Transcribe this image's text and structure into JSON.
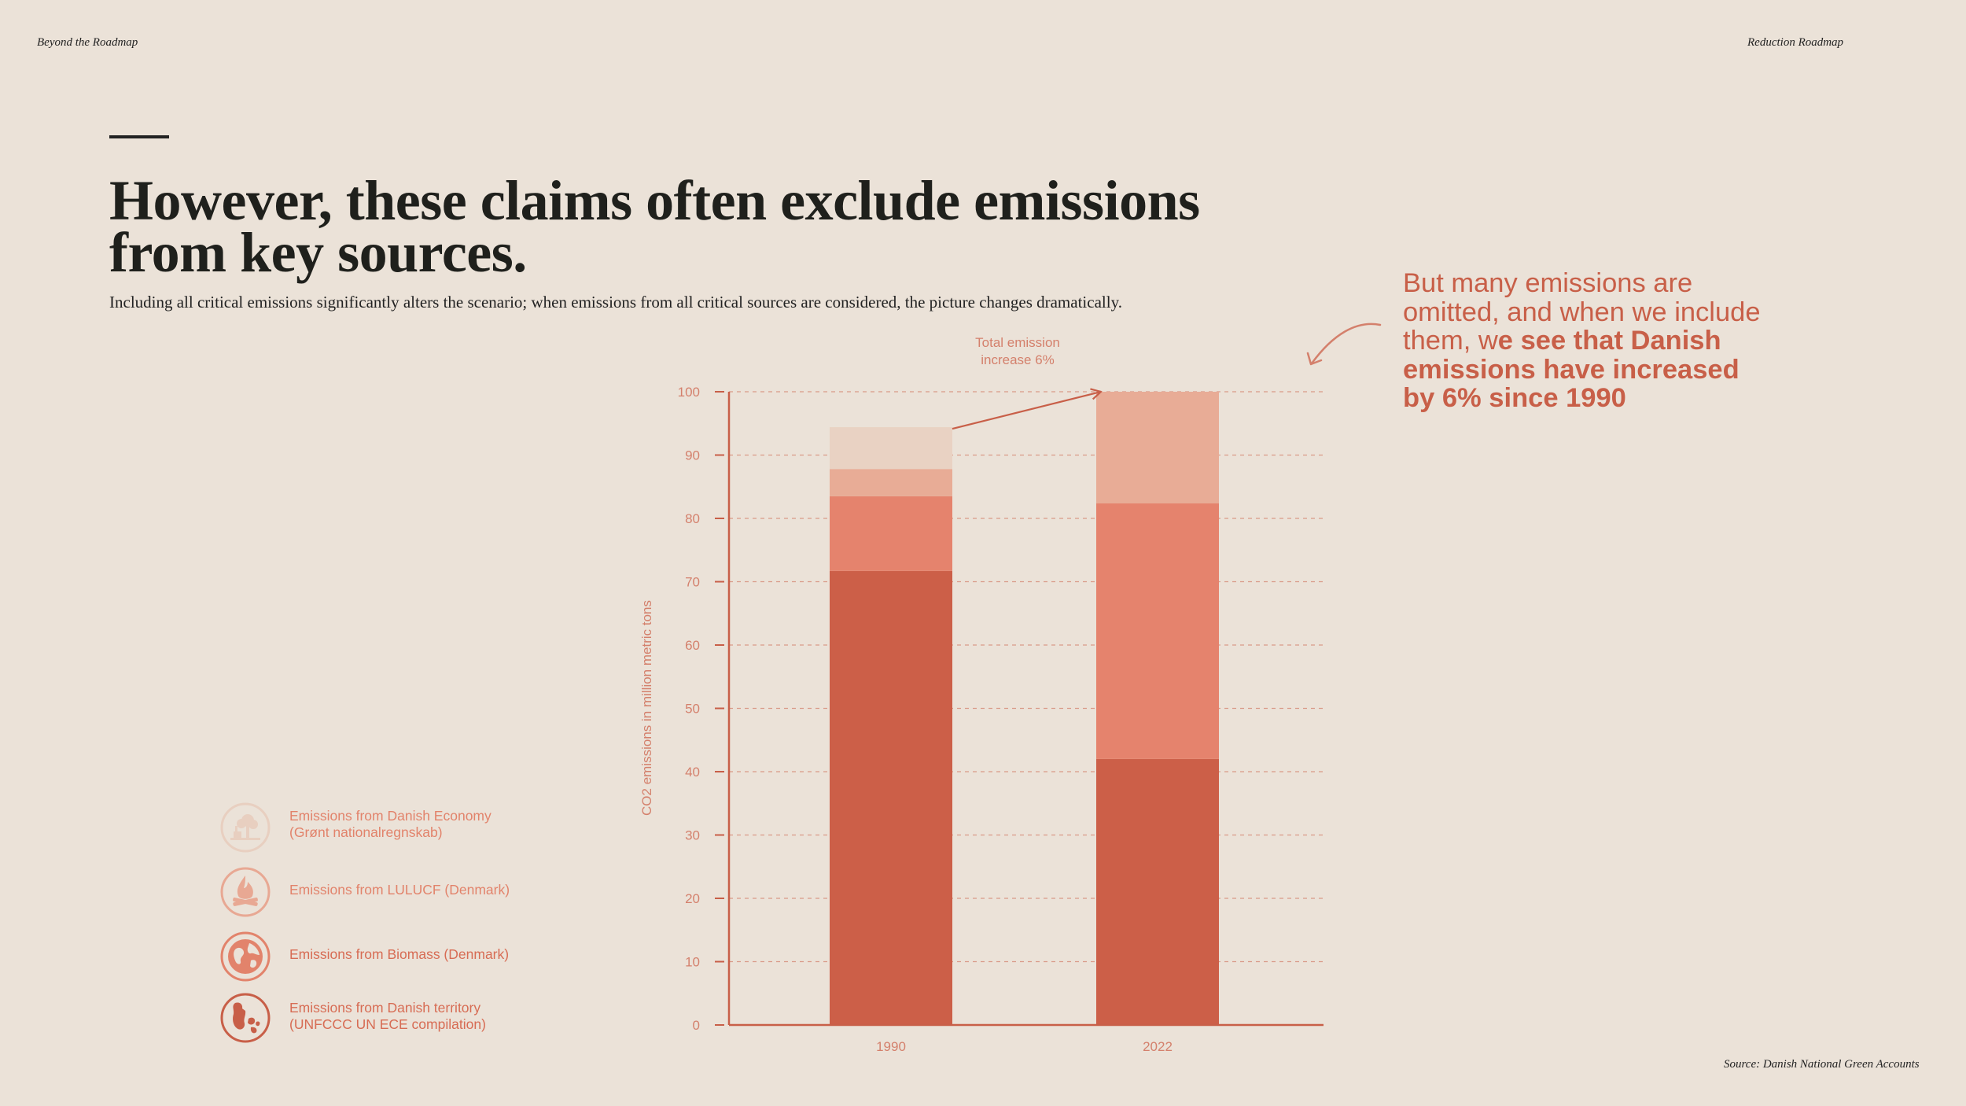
{
  "header": {
    "left": "Beyond the Roadmap",
    "right": "Reduction Roadmap"
  },
  "title": "However, these claims often exclude emissions from key sources.",
  "subtitle": "Including all critical emissions significantly alters the scenario; when emissions from all critical sources are considered, the picture changes dramatically.",
  "callout": {
    "normal": "But many emissions are omitted, and when we include them, w",
    "bold": "e see that Danish emissions have increased by 6% since 1990"
  },
  "source": "Source: Danish National Green Accounts",
  "legend": [
    {
      "label_line1": "Emissions from Danish Economy",
      "label_line2": "(Grønt nationalregnskab)",
      "icon": "tree-industry-icon",
      "color": "#e8cfc0"
    },
    {
      "label_line1": "Emissions from LULUCF (Denmark)",
      "label_line2": "",
      "icon": "campfire-icon",
      "color": "#e8a893"
    },
    {
      "label_line1": "Emissions from Biomass (Denmark)",
      "label_line2": "",
      "icon": "globe-icon",
      "color": "#e2836b"
    },
    {
      "label_line1": "Emissions from Danish territory",
      "label_line2": "(UNFCCC UN ECE compilation)",
      "icon": "denmark-map-icon",
      "color": "#c85f48"
    }
  ],
  "chart_data": {
    "type": "bar",
    "stacked": true,
    "categories": [
      "1990",
      "2022"
    ],
    "series": [
      {
        "name": "Emissions from Danish territory (UNFCCC UN ECE compilation)",
        "values": [
          71.7,
          42.0
        ],
        "color": "#cc5f48"
      },
      {
        "name": "Emissions from Biomass (Denmark)",
        "values": [
          11.8,
          40.4
        ],
        "color": "#e5836d"
      },
      {
        "name": "Emissions from LULUCF (Denmark)",
        "values": [
          4.3,
          17.6
        ],
        "color": "#e8ac96"
      },
      {
        "name": "Emissions from Danish Economy (Grønt nationalregnskab)",
        "values": [
          6.6,
          0
        ],
        "color": "#e9d2c3"
      }
    ],
    "ylabel": "CO2 emissions in million metric tons",
    "ylim": [
      0,
      100
    ],
    "yticks": [
      0,
      10,
      20,
      30,
      40,
      50,
      60,
      70,
      80,
      90,
      100
    ],
    "grid": true,
    "annotation": {
      "line1": "Total emission",
      "line2": "increase 6%"
    }
  }
}
